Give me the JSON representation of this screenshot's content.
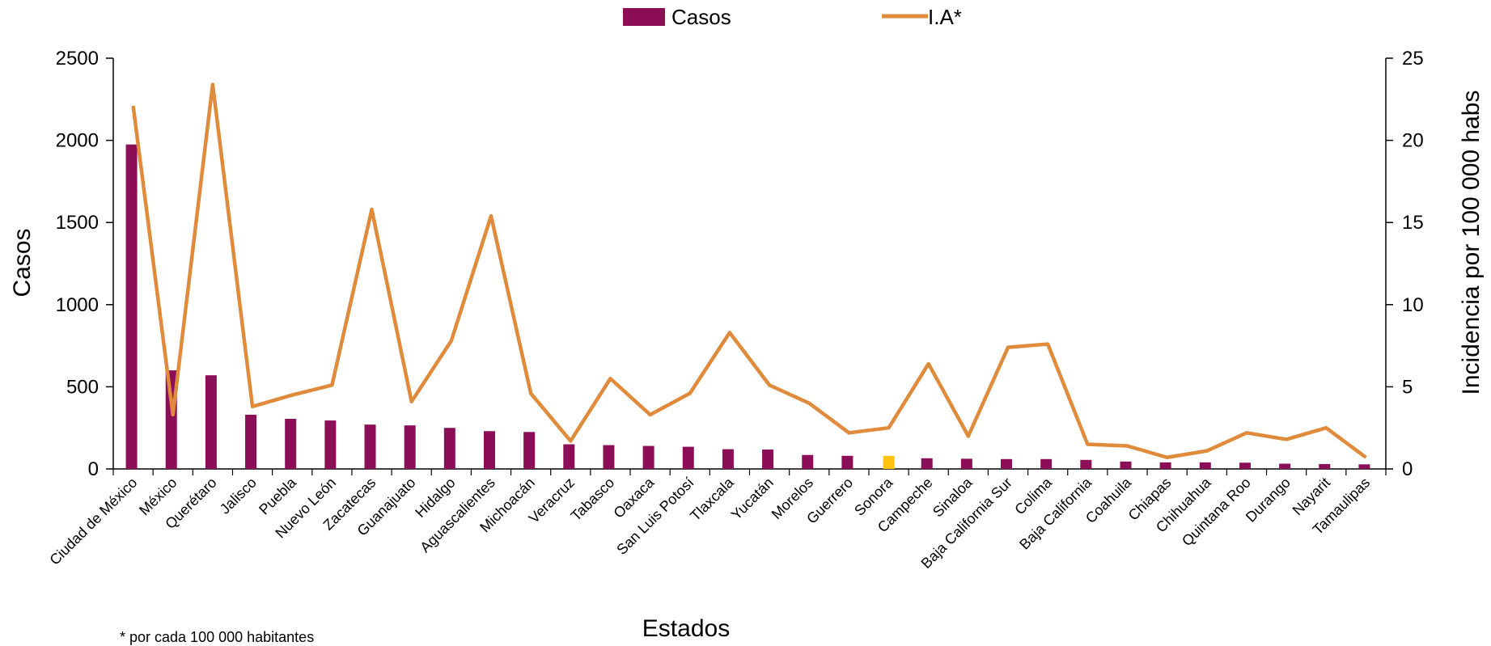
{
  "footnote": "* por cada 100 000 habitantes",
  "colors": {
    "bar": "#8B0E57",
    "bar_highlight": "#FFC20E",
    "line": "#E08A3C",
    "axis": "#000000"
  },
  "chart_data": {
    "type": "bar",
    "title": "",
    "xlabel": "Estados",
    "ylabel": "Casos",
    "y2label": "Incidencia por 100 000 habs",
    "ylim": [
      0,
      2500
    ],
    "y2lim": [
      0,
      25
    ],
    "yticks": [
      "0",
      "500",
      "1000",
      "1500",
      "2000",
      "2500"
    ],
    "y2ticks": [
      "0",
      "5",
      "10",
      "15",
      "20",
      "25"
    ],
    "legend_position": "top-center",
    "grid": false,
    "highlight_category": "Sonora",
    "categories": [
      "Ciudad de México",
      "México",
      "Querétaro",
      "Jalisco",
      "Puebla",
      "Nuevo León",
      "Zacatecas",
      "Guanajuato",
      "Hidalgo",
      "Aguascalientes",
      "Michoacán",
      "Veracruz",
      "Tabasco",
      "Oaxaca",
      "San Luis Potosí",
      "Tlaxcala",
      "Yucatán",
      "Morelos",
      "Guerrero",
      "Sonora",
      "Campeche",
      "Sinaloa",
      "Baja California Sur",
      "Colima",
      "Baja California",
      "Coahuila",
      "Chiapas",
      "Chihuahua",
      "Quintana Roo",
      "Durango",
      "Nayarit",
      "Tamaulipas"
    ],
    "series": [
      {
        "name": "Casos",
        "type": "bar",
        "axis": "left",
        "values": [
          1975,
          600,
          570,
          330,
          305,
          295,
          270,
          265,
          250,
          230,
          225,
          150,
          145,
          140,
          135,
          120,
          118,
          85,
          80,
          80,
          65,
          62,
          60,
          60,
          55,
          45,
          40,
          40,
          38,
          32,
          30,
          28
        ]
      },
      {
        "name": "I.A*",
        "type": "line",
        "axis": "right",
        "values": [
          22.1,
          3.3,
          23.4,
          3.8,
          4.5,
          5.1,
          15.8,
          4.1,
          7.8,
          15.4,
          4.6,
          1.7,
          5.5,
          3.3,
          4.6,
          8.3,
          5.1,
          4.0,
          2.2,
          2.5,
          6.4,
          2.0,
          7.4,
          7.6,
          1.5,
          1.4,
          0.7,
          1.1,
          2.2,
          1.8,
          2.5,
          0.7
        ]
      }
    ]
  }
}
